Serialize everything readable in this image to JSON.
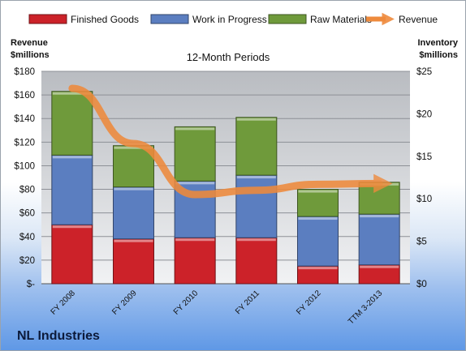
{
  "company": "NL Industries",
  "chart_data": {
    "type": "bar",
    "stacked": true,
    "subtitle": "12-Month Periods",
    "categories": [
      "FY 2008",
      "FY 2009",
      "FY 2010",
      "FY 2011",
      "FY 2012",
      "TTM 3-2013"
    ],
    "series": [
      {
        "name": "Finished Goods",
        "color": "#cc2229",
        "values": [
          50,
          38,
          39,
          39,
          15,
          16
        ]
      },
      {
        "name": "Work in Progress",
        "color": "#5b7ec0",
        "values": [
          59,
          44,
          48,
          53,
          42,
          43
        ]
      },
      {
        "name": "Raw Materials",
        "color": "#6f9a3b",
        "values": [
          54,
          35,
          46,
          49,
          23,
          27
        ]
      }
    ],
    "line_series": {
      "name": "Revenue",
      "color": "#ee8a3c",
      "axis": "right",
      "values": [
        23,
        16.5,
        10.5,
        11,
        11.7,
        11.8
      ]
    },
    "left_axis": {
      "title_line1": "Revenue",
      "title_line2": "$millions",
      "range": [
        0,
        180
      ],
      "step": 20,
      "tick_labels": [
        "$-",
        "$20",
        "$40",
        "$60",
        "$80",
        "$100",
        "$120",
        "$140",
        "$160",
        "$180"
      ]
    },
    "right_axis": {
      "title_line1": "Inventory",
      "title_line2": "$millions",
      "range": [
        0,
        25
      ],
      "step": 5,
      "tick_labels": [
        "$0",
        "$5",
        "$10",
        "$15",
        "$20",
        "$25"
      ]
    },
    "legend_position": "top",
    "grid": true
  }
}
